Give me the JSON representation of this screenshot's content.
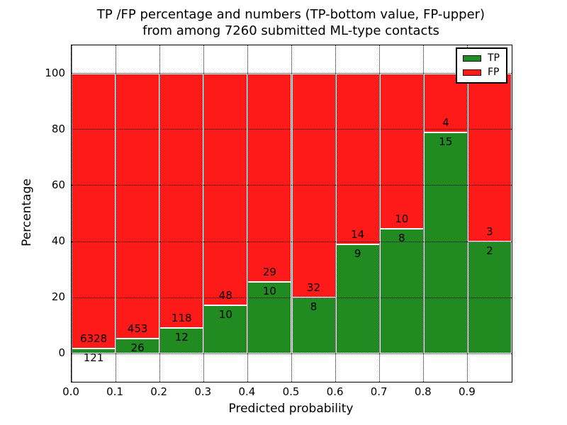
{
  "figure": {
    "title_line1": "TP /FP percentage and numbers (TP-bottom value, FP-upper)",
    "title_line2": "from among 7260 submitted ML-type contacts"
  },
  "chart_data": {
    "type": "bar",
    "stacked": true,
    "normalized_to_percent": true,
    "title": "TP /FP percentage and numbers (TP-bottom value, FP-upper)\nfrom among 7260 submitted ML-type contacts",
    "xlabel": "Predicted probability",
    "ylabel": "Percentage",
    "total_contacts": 7260,
    "bin_edges": [
      0.0,
      0.1,
      0.2,
      0.3,
      0.4,
      0.5,
      0.6,
      0.7,
      0.8,
      0.9,
      1.0
    ],
    "series": [
      {
        "name": "TP",
        "color": "#218a21",
        "counts": [
          121,
          26,
          12,
          10,
          10,
          8,
          9,
          8,
          15,
          2
        ]
      },
      {
        "name": "FP",
        "color": "#ff1a1a",
        "counts": [
          6328,
          453,
          118,
          48,
          29,
          32,
          14,
          10,
          4,
          3
        ]
      }
    ],
    "tp_percent_by_bin": [
      1.88,
      5.43,
      9.23,
      17.24,
      25.64,
      20.0,
      39.13,
      44.44,
      78.95,
      40.0
    ],
    "xticks": [
      "0.0",
      "0.1",
      "0.2",
      "0.3",
      "0.4",
      "0.5",
      "0.6",
      "0.7",
      "0.8",
      "0.9"
    ],
    "yticks": [
      0,
      20,
      40,
      60,
      80,
      100
    ],
    "xlim": [
      0.0,
      1.0
    ],
    "ylim": [
      -10,
      110
    ],
    "grid": true,
    "grid_style": "dotted",
    "bar_edge_color": "#ffffff",
    "legend": {
      "position": "upper right",
      "entries": [
        {
          "label": "TP",
          "color": "#218a21"
        },
        {
          "label": "FP",
          "color": "#ff1a1a"
        }
      ]
    }
  }
}
